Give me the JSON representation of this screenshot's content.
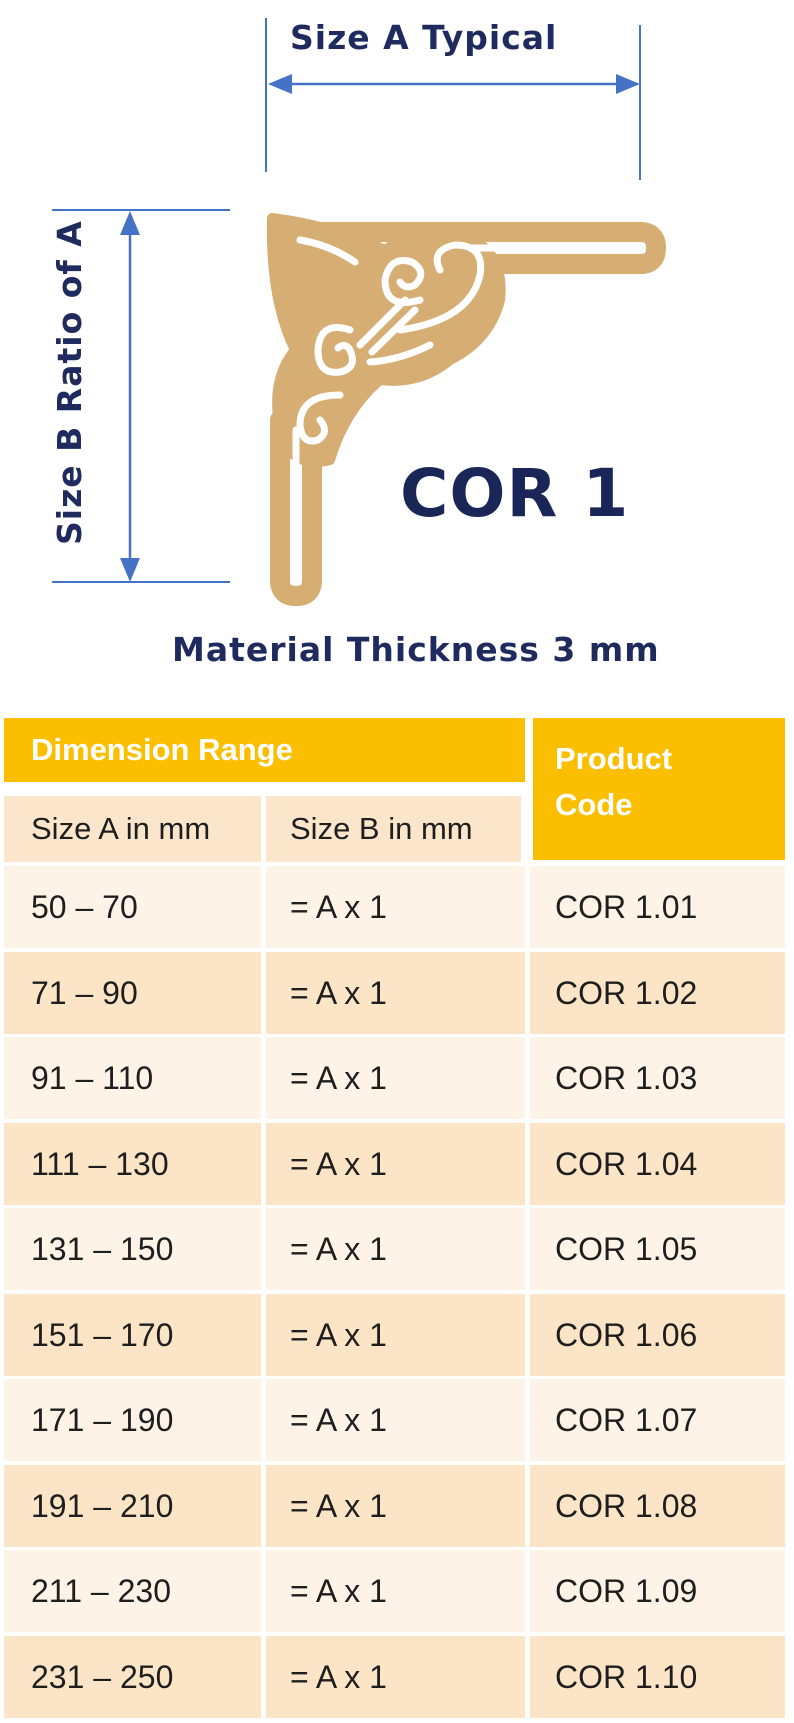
{
  "diagram": {
    "size_a_label": "Size A Typical",
    "size_b_label": "Size B Ratio of A",
    "code_title": "COR 1",
    "thickness_label": "Material Thickness 3 mm",
    "colors": {
      "text": "#1f2a5e",
      "arrow": "#4472c4",
      "ornament": "#d6ae74",
      "header": "#fbbf00",
      "row_light": "#fdf3e6",
      "row_dark": "#fce5c7"
    }
  },
  "table": {
    "group_header": "Dimension Range",
    "product_code_header": "Product Code",
    "col_a_header": "Size A in mm",
    "col_b_header": "Size B in mm",
    "rows": [
      {
        "a": "50 – 70",
        "b": "= A x 1",
        "code": "COR 1.01"
      },
      {
        "a": "71 – 90",
        "b": "= A x 1",
        "code": "COR 1.02"
      },
      {
        "a": "91 – 110",
        "b": "= A x 1",
        "code": "COR 1.03"
      },
      {
        "a": "111 – 130",
        "b": "= A x 1",
        "code": "COR 1.04"
      },
      {
        "a": "131 – 150",
        "b": "= A x 1",
        "code": "COR 1.05"
      },
      {
        "a": "151 – 170",
        "b": "= A x 1",
        "code": "COR 1.06"
      },
      {
        "a": "171 – 190",
        "b": "= A x 1",
        "code": "COR 1.07"
      },
      {
        "a": "191 – 210",
        "b": "= A x 1",
        "code": "COR 1.08"
      },
      {
        "a": "211 – 230",
        "b": "= A x 1",
        "code": "COR 1.09"
      },
      {
        "a": "231 – 250",
        "b": "= A x 1",
        "code": "COR 1.10"
      }
    ]
  }
}
